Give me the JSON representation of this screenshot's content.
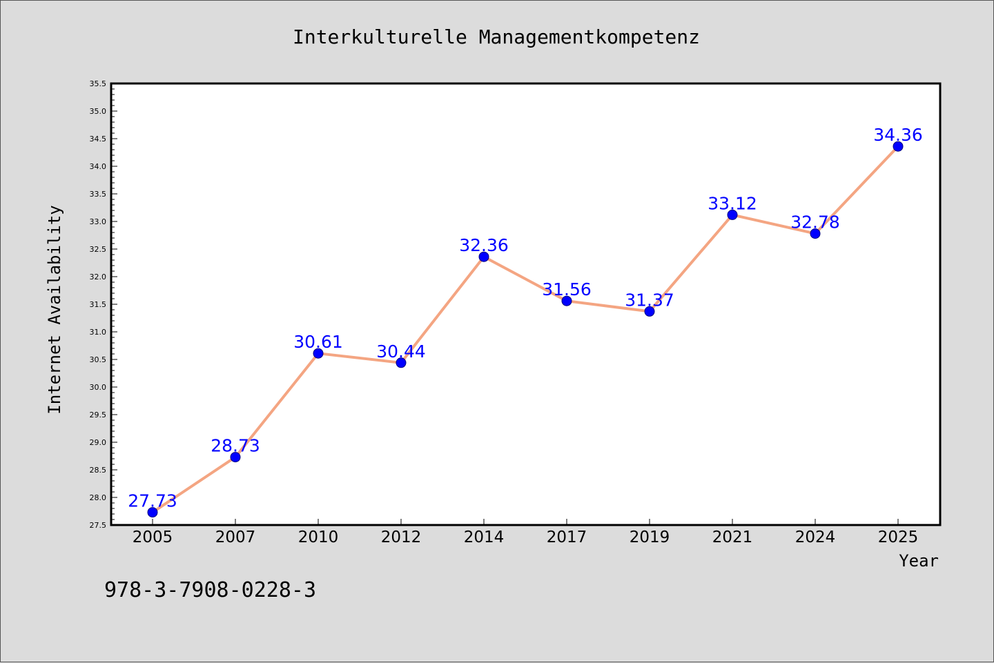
{
  "chart_data": {
    "type": "line",
    "title": "Interkulturelle Managementkompetenz",
    "xlabel": "Year",
    "ylabel": "Internet Availability",
    "categories": [
      "2005",
      "2007",
      "2010",
      "2012",
      "2014",
      "2017",
      "2019",
      "2021",
      "2024",
      "2025"
    ],
    "values": [
      27.73,
      28.73,
      30.61,
      30.44,
      32.36,
      31.56,
      31.37,
      33.12,
      32.78,
      34.36
    ],
    "data_labels": [
      "27.73",
      "28.73",
      "30.61",
      "30.44",
      "32.36",
      "31.56",
      "31.37",
      "33.12",
      "32.78",
      "34.36"
    ],
    "ylim": [
      27.5,
      35.5
    ],
    "yticks": [
      "27.5",
      "28.0",
      "28.5",
      "29.0",
      "29.5",
      "30.0",
      "30.5",
      "31.0",
      "31.5",
      "32.0",
      "32.5",
      "33.0",
      "33.5",
      "34.0",
      "34.5",
      "35.0",
      "35.5"
    ],
    "grid": false,
    "legend": "none",
    "line_color": "#f4a582",
    "marker_color": "#0000ff",
    "label_color": "#0000ff",
    "background_color": "#dcdcdc",
    "plot_background_color": "#ffffff"
  },
  "annotation": {
    "isbn": "978-3-7908-0228-3"
  }
}
